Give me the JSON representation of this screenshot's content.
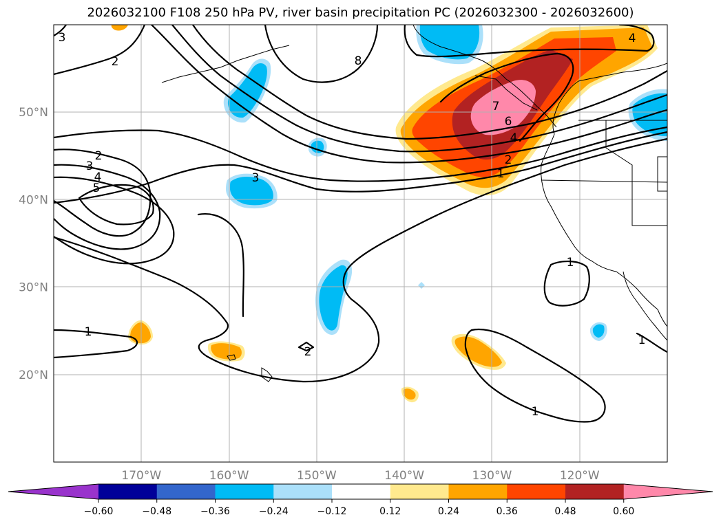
{
  "title": "2026032100 F108 250 hPa PV, river basin precipitation PC (2026032300 - 2026032600)",
  "map": {
    "lon_range": [
      -180,
      -110
    ],
    "lat_range": [
      10,
      60
    ],
    "lat_labels": [
      {
        "lat": 50,
        "text": "50°N"
      },
      {
        "lat": 40,
        "text": "40°N"
      },
      {
        "lat": 30,
        "text": "30°N"
      },
      {
        "lat": 20,
        "text": "20°N"
      }
    ],
    "lon_labels": [
      {
        "lon": -170,
        "text": "170°W"
      },
      {
        "lon": -160,
        "text": "160°W"
      },
      {
        "lon": -150,
        "text": "150°W"
      },
      {
        "lon": -140,
        "text": "140°W"
      },
      {
        "lon": -130,
        "text": "130°W"
      },
      {
        "lon": -120,
        "text": "120°W"
      }
    ]
  },
  "colorbar": {
    "ticks": [
      "−0.60",
      "−0.48",
      "−0.36",
      "−0.24",
      "−0.12",
      "0.12",
      "0.24",
      "0.36",
      "0.48",
      "0.60"
    ],
    "colors": [
      "#9933cc",
      "#000099",
      "#3366cc",
      "#00bbf5",
      "#abe0fa",
      "#ffffff",
      "#ffe98e",
      "#ffa500",
      "#ff4500",
      "#b22222",
      "#ff88aa"
    ]
  },
  "contour_labels": [
    "3",
    "2",
    "2",
    "3",
    "4",
    "5",
    "3",
    "8",
    "7",
    "6",
    "4",
    "2",
    "1",
    "4",
    "1",
    "1",
    "2",
    "1",
    "1"
  ]
}
